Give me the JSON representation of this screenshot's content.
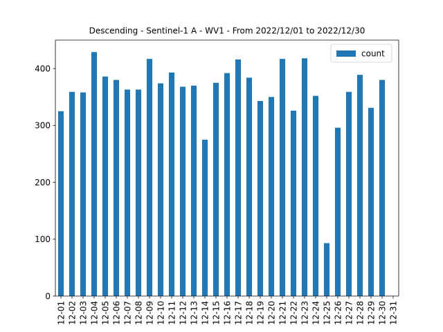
{
  "chart_data": {
    "type": "bar",
    "title": "Descending - Sentinel-1 A - WV1 - From 2022/12/01 to 2022/12/30",
    "xlabel": "",
    "ylabel": "",
    "ylim": [
      0,
      450
    ],
    "yticks": [
      0,
      100,
      200,
      300,
      400
    ],
    "grid": false,
    "legend_position": "top-right",
    "bar_color": "#1f77b4",
    "categories": [
      "12-01",
      "12-02",
      "12-03",
      "12-04",
      "12-05",
      "12-06",
      "12-07",
      "12-08",
      "12-09",
      "12-10",
      "12-11",
      "12-12",
      "12-13",
      "12-14",
      "12-15",
      "12-16",
      "12-17",
      "12-18",
      "12-19",
      "12-20",
      "12-21",
      "12-22",
      "12-23",
      "12-24",
      "12-25",
      "12-26",
      "12-27",
      "12-28",
      "12-29",
      "12-30",
      "12-31"
    ],
    "series": [
      {
        "name": "count",
        "values": [
          325,
          359,
          358,
          429,
          386,
          380,
          363,
          363,
          417,
          374,
          393,
          368,
          370,
          275,
          375,
          392,
          416,
          384,
          343,
          350,
          417,
          326,
          418,
          352,
          93,
          296,
          359,
          389,
          331,
          380,
          null
        ]
      }
    ]
  }
}
